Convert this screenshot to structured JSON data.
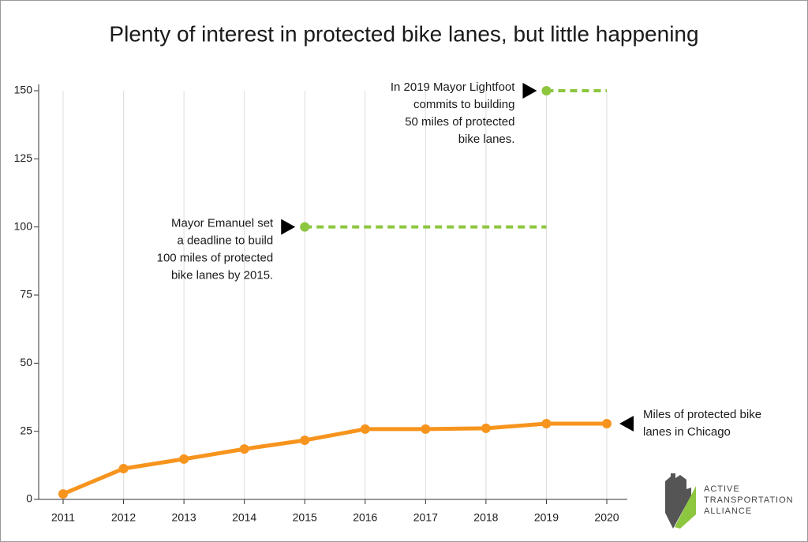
{
  "chart_data": {
    "type": "line",
    "title": "Plenty of interest in protected bike lanes, but little happening",
    "categories": [
      "2011",
      "2012",
      "2013",
      "2014",
      "2015",
      "2016",
      "2017",
      "2018",
      "2019",
      "2020"
    ],
    "series": [
      {
        "color": "#f7941d",
        "style": "solid",
        "values": [
          2,
          11.3,
          14.8,
          18.5,
          21.7,
          25.8,
          25.8,
          26.1,
          27.8,
          27.8
        ],
        "label": [
          "Miles of protected bike",
          "lanes in Chicago"
        ]
      },
      {
        "color": "#8dc63f",
        "style": "dotted",
        "values": [
          null,
          null,
          null,
          null,
          100,
          100,
          100,
          100,
          100,
          null
        ],
        "label": [
          "Mayor Emanuel set",
          "a deadline to build",
          "100 miles of protected",
          "bike lanes by 2015."
        ]
      },
      {
        "color": "#8dc63f",
        "style": "dotted",
        "values": [
          null,
          null,
          null,
          null,
          null,
          null,
          null,
          null,
          150,
          150
        ],
        "label": [
          "In 2019 Mayor Lightfoot",
          "commits to building",
          "50 miles of protected",
          "bike lanes."
        ]
      }
    ],
    "ylim": [
      0,
      150
    ],
    "yticks": [
      0,
      25,
      50,
      75,
      100,
      125,
      150
    ],
    "grid": true,
    "logo": [
      "ACTIVE",
      "TRANSPORTATION",
      "ALLIANCE"
    ]
  }
}
